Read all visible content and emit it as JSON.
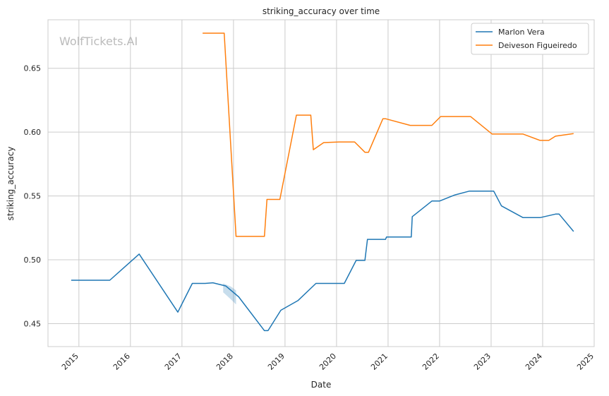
{
  "chart_data": {
    "type": "line",
    "title": "striking_accuracy over time",
    "xlabel": "Date",
    "ylabel": "striking_accuracy",
    "watermark": "WolfTickets.AI",
    "xlim": [
      2014.4,
      2025.0
    ],
    "ylim": [
      0.432,
      0.688
    ],
    "x_ticks": [
      2015,
      2016,
      2017,
      2018,
      2019,
      2020,
      2021,
      2022,
      2023,
      2024,
      2025
    ],
    "x_tick_labels": [
      "2015",
      "2016",
      "2017",
      "2018",
      "2019",
      "2020",
      "2021",
      "2022",
      "2023",
      "2024",
      "2025"
    ],
    "y_ticks": [
      0.45,
      0.5,
      0.55,
      0.6,
      0.65
    ],
    "y_tick_labels": [
      "0.45",
      "0.50",
      "0.55",
      "0.60",
      "0.65"
    ],
    "grid": true,
    "legend_position": "top-right",
    "series": [
      {
        "name": "Marlon Vera",
        "color": "#1f77b4",
        "x": [
          2014.85,
          2015.6,
          2016.17,
          2016.92,
          2017.2,
          2017.45,
          2017.6,
          2017.85,
          2018.1,
          2018.6,
          2018.67,
          2018.92,
          2019.25,
          2019.6,
          2020.15,
          2020.38,
          2020.55,
          2020.6,
          2020.95,
          2020.97,
          2021.45,
          2021.47,
          2021.85,
          2022.0,
          2022.3,
          2022.58,
          2023.05,
          2023.2,
          2023.62,
          2023.95,
          2024.25,
          2024.32,
          2024.6
        ],
        "y": [
          0.484,
          0.484,
          0.5045,
          0.459,
          0.4815,
          0.4815,
          0.482,
          0.4795,
          0.471,
          0.4445,
          0.4445,
          0.4605,
          0.468,
          0.4815,
          0.4815,
          0.4995,
          0.4995,
          0.516,
          0.516,
          0.5178,
          0.5178,
          0.5338,
          0.546,
          0.546,
          0.5508,
          0.5538,
          0.5538,
          0.5422,
          0.533,
          0.533,
          0.5358,
          0.5358,
          0.5222
        ],
        "ci_band": {
          "x": [
            2017.8,
            2017.95,
            2018.05
          ],
          "upper": [
            0.4815,
            0.479,
            0.476
          ],
          "lower": [
            0.4745,
            0.469,
            0.465
          ]
        }
      },
      {
        "name": "Deiveson Figueiredo",
        "color": "#ff7f0e",
        "x": [
          2017.4,
          2017.82,
          2018.05,
          2018.6,
          2018.65,
          2018.9,
          2019.22,
          2019.5,
          2019.55,
          2019.75,
          2020.05,
          2020.35,
          2020.55,
          2020.62,
          2020.9,
          2020.95,
          2021.43,
          2021.85,
          2022.02,
          2022.6,
          2023.02,
          2023.62,
          2023.95,
          2024.12,
          2024.25,
          2024.6
        ],
        "y": [
          0.6775,
          0.6775,
          0.5183,
          0.5183,
          0.5473,
          0.5473,
          0.6133,
          0.6133,
          0.5862,
          0.5918,
          0.5923,
          0.5923,
          0.5842,
          0.5842,
          0.6105,
          0.6105,
          0.6053,
          0.6053,
          0.6122,
          0.6122,
          0.5985,
          0.5985,
          0.5935,
          0.5935,
          0.5968,
          0.5988
        ]
      }
    ]
  }
}
